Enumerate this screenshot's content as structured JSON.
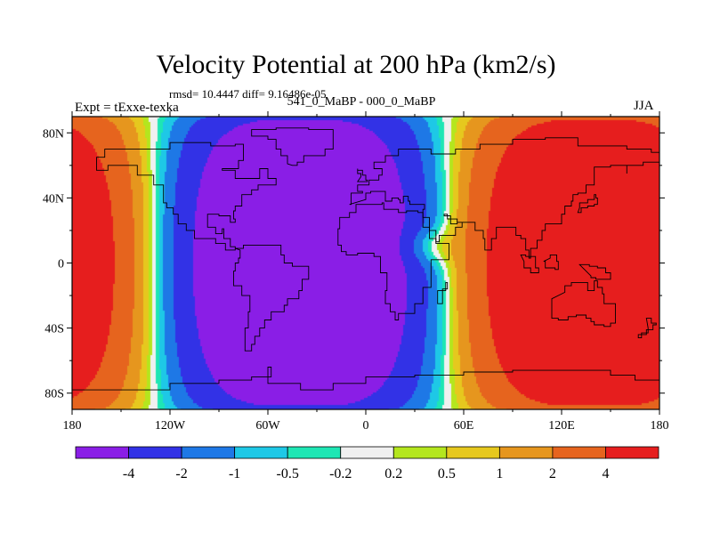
{
  "chart_data": {
    "type": "contour-map",
    "title": "Velocity Potential at 200 hPa (km2/s)",
    "stats_label": "rmsd= 10.4447 diff= 9.16486e-05",
    "experiment_label": "Expt = tExxe-texka",
    "case_label": "541_0_MaBP - 000_0_MaBP",
    "season_label": "JJA",
    "x_axis": {
      "range": [
        -180,
        180
      ],
      "ticks": [
        {
          "value": -180,
          "label": "180"
        },
        {
          "value": -120,
          "label": "120W"
        },
        {
          "value": -60,
          "label": "60W"
        },
        {
          "value": 0,
          "label": "0"
        },
        {
          "value": 60,
          "label": "60E"
        },
        {
          "value": 120,
          "label": "120E"
        },
        {
          "value": 180,
          "label": "180"
        }
      ]
    },
    "y_axis": {
      "range": [
        -90,
        90
      ],
      "ticks": [
        {
          "value": 80,
          "label": "80N"
        },
        {
          "value": 40,
          "label": "40N"
        },
        {
          "value": 0,
          "label": "0"
        },
        {
          "value": -40,
          "label": "40S"
        },
        {
          "value": -80,
          "label": "80S"
        }
      ]
    },
    "colorbar": {
      "levels": [
        "-4",
        "-2",
        "-1",
        "-0.5",
        "-0.2",
        "0.2",
        "0.5",
        "1",
        "2",
        "4"
      ],
      "colors": [
        "#8a1ee6",
        "#3232e6",
        "#1e78e6",
        "#1ec8e6",
        "#1ee6b4",
        "#f0f0f0",
        "#b4e61e",
        "#e6c81e",
        "#e6961e",
        "#e6641e",
        "#e61e1e"
      ]
    },
    "field": {
      "description": "Negative centre over Atlantic/Americas/Africa, positive over Pacific/Asia/Australia",
      "negative_center": {
        "lon": -40,
        "lat": 10,
        "value": -8
      },
      "secondary_center": {
        "lon": 35,
        "lat": 10,
        "value": -3
      },
      "positive_center": {
        "lon": 150,
        "lat": 0,
        "value": 8
      }
    }
  }
}
